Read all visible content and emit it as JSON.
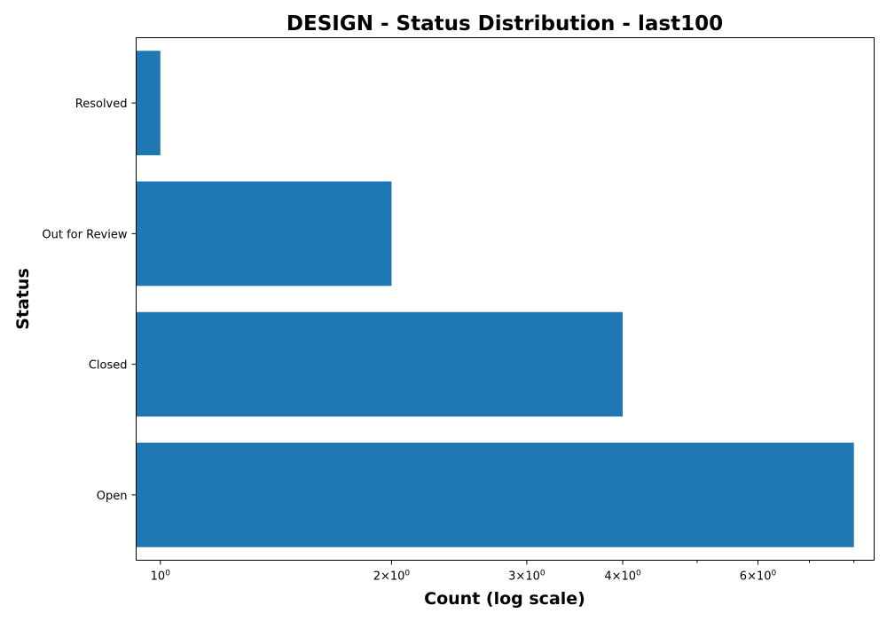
{
  "chart_data": {
    "type": "bar",
    "orientation": "horizontal",
    "title": "DESIGN - Status Distribution - last100",
    "xlabel": "Count (log scale)",
    "ylabel": "Status",
    "xscale": "log",
    "xlim": [
      0.93,
      8.5
    ],
    "categories": [
      "Open",
      "Closed",
      "Out for Review",
      "Resolved"
    ],
    "values": [
      8,
      4,
      2,
      1
    ],
    "bar_color": "#1f77b4",
    "major_ticks": [
      {
        "value": 1,
        "base": "10",
        "exp": "0",
        "coef": ""
      },
      {
        "value": 2,
        "base": "10",
        "exp": "0",
        "coef": "2×"
      },
      {
        "value": 3,
        "base": "10",
        "exp": "0",
        "coef": "3×"
      },
      {
        "value": 4,
        "base": "10",
        "exp": "0",
        "coef": "4×"
      },
      {
        "value": 6,
        "base": "10",
        "exp": "0",
        "coef": "6×"
      }
    ],
    "minor_ticks": [
      5,
      7,
      8
    ],
    "grid": false
  }
}
